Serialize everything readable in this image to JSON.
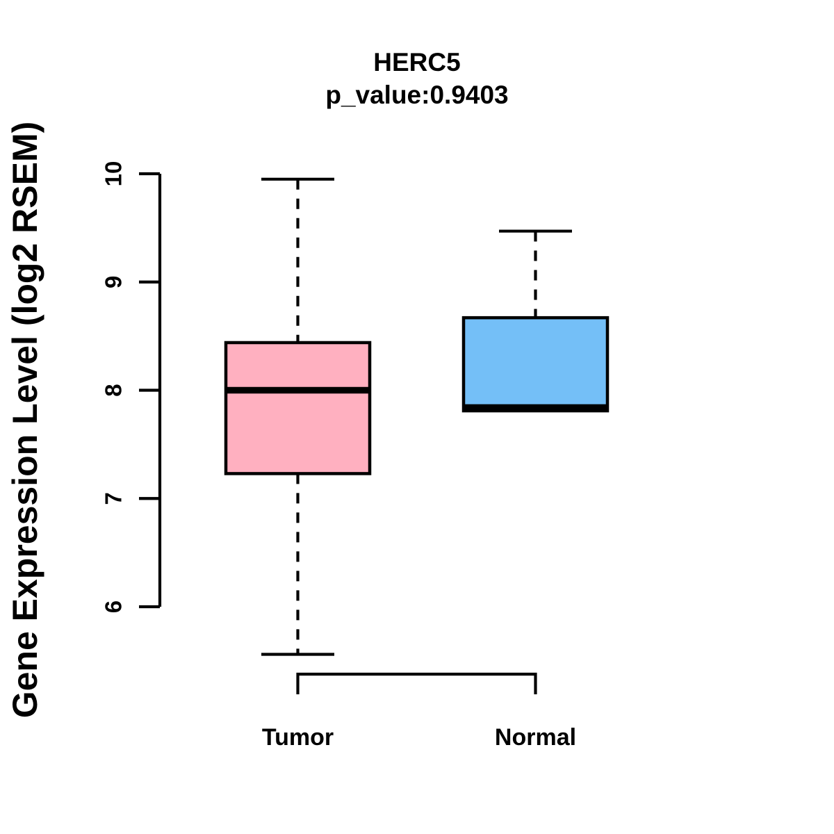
{
  "title": {
    "line1": "HERC5",
    "line2": "p_value:0.9403"
  },
  "chart_data": {
    "type": "boxplot",
    "title": "HERC5",
    "subtitle": "p_value:0.9403",
    "xlabel": "",
    "ylabel": "Gene Expression Level (log2 RSEM)",
    "ylim": [
      5.4,
      10.15
    ],
    "yticks": [
      6,
      7,
      8,
      9,
      10
    ],
    "grid": false,
    "colors": {
      "axis": "#000000",
      "tumor_fill": "#FFB0C0",
      "normal_fill": "#74BFF7"
    },
    "groups": [
      {
        "label": "Tumor",
        "fill": "#FFB0C0",
        "whisker_low": 5.56,
        "q1": 7.23,
        "median": 8.0,
        "q3": 8.44,
        "whisker_high": 9.95
      },
      {
        "label": "Normal",
        "fill": "#74BFF7",
        "whisker_low": 7.81,
        "q1": 7.81,
        "median": 7.84,
        "q3": 8.67,
        "whisker_high": 9.47
      }
    ]
  }
}
